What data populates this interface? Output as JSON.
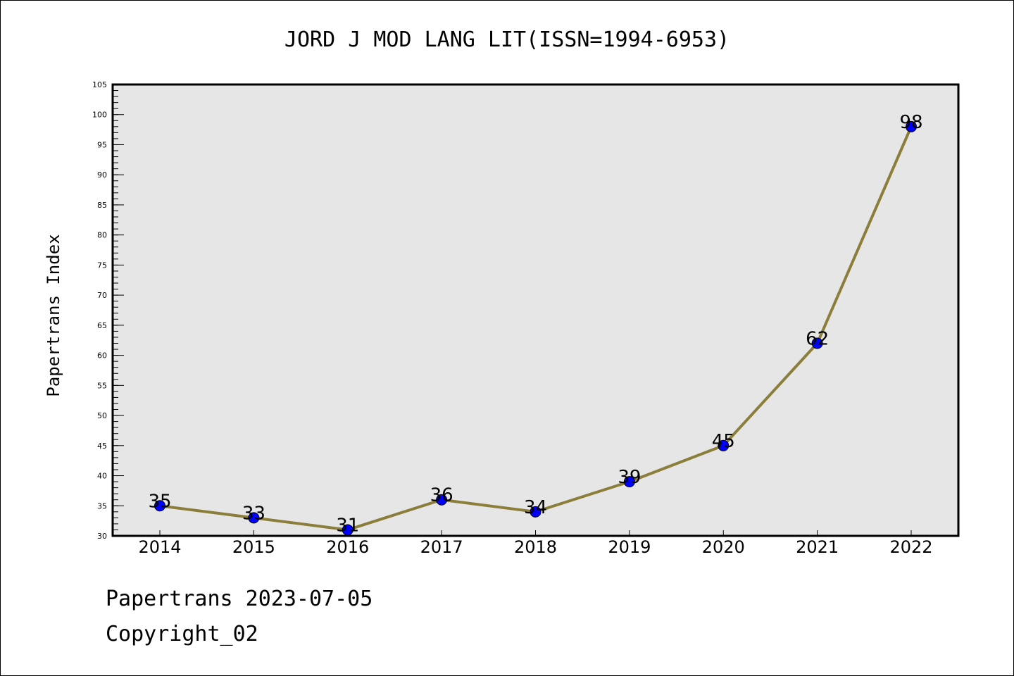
{
  "chart_data": {
    "type": "line",
    "title": "JORD J MOD LANG LIT(ISSN=1994-6953)",
    "xlabel": "",
    "ylabel": "Papertrans Index",
    "categories": [
      "2014",
      "2015",
      "2016",
      "2017",
      "2018",
      "2019",
      "2020",
      "2021",
      "2022"
    ],
    "values": [
      35,
      33,
      31,
      36,
      34,
      39,
      45,
      62,
      98
    ],
    "data_labels": [
      "35",
      "33",
      "31",
      "36",
      "34",
      "39",
      "45",
      "62",
      "98"
    ],
    "ylim": [
      30,
      105
    ],
    "yticks": [
      "30",
      "35",
      "40",
      "45",
      "50",
      "55",
      "60",
      "65",
      "70",
      "75",
      "80",
      "85",
      "90",
      "95",
      "100",
      "105"
    ],
    "grid": false,
    "legend": "none",
    "colors": {
      "line": "#8b7d3a",
      "marker": "#0000ff",
      "plot_background": "#e6e6e6"
    }
  },
  "footer": {
    "line1": "Papertrans 2023-07-05",
    "line2": "Copyright_02"
  }
}
